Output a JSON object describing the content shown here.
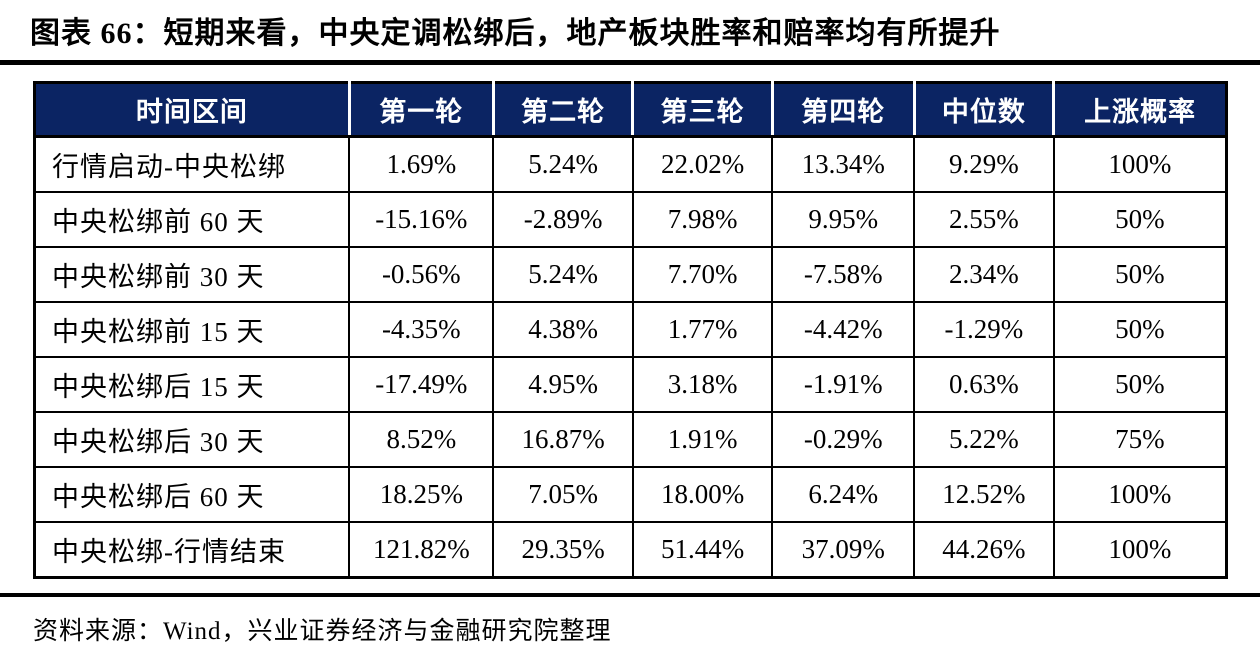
{
  "title": "图表 66：短期来看，中央定调松绑后，地产板块胜率和赔率均有所提升",
  "source_note": "资料来源：Wind，兴业证券经济与金融研究院整理",
  "colors": {
    "header_bg": "#0b2463",
    "header_text": "#ffffff",
    "border": "#000000",
    "text": "#000000",
    "page_bg": "#ffffff"
  },
  "chart_data": {
    "type": "table",
    "title": "短期来看，中央定调松绑后，地产板块胜率和赔率均有所提升",
    "columns": [
      "时间区间",
      "第一轮",
      "第二轮",
      "第三轮",
      "第四轮",
      "中位数",
      "上涨概率"
    ],
    "rows": [
      {
        "cells": [
          "行情启动-中央松绑",
          "1.69%",
          "5.24%",
          "22.02%",
          "13.34%",
          "9.29%",
          "100%"
        ]
      },
      {
        "cells": [
          "中央松绑前 60 天",
          "-15.16%",
          "-2.89%",
          "7.98%",
          "9.95%",
          "2.55%",
          "50%"
        ]
      },
      {
        "cells": [
          "中央松绑前 30 天",
          "-0.56%",
          "5.24%",
          "7.70%",
          "-7.58%",
          "2.34%",
          "50%"
        ]
      },
      {
        "cells": [
          "中央松绑前 15 天",
          "-4.35%",
          "4.38%",
          "1.77%",
          "-4.42%",
          "-1.29%",
          "50%"
        ]
      },
      {
        "cells": [
          "中央松绑后 15 天",
          "-17.49%",
          "4.95%",
          "3.18%",
          "-1.91%",
          "0.63%",
          "50%"
        ]
      },
      {
        "cells": [
          "中央松绑后 30 天",
          "8.52%",
          "16.87%",
          "1.91%",
          "-0.29%",
          "5.22%",
          "75%"
        ]
      },
      {
        "cells": [
          "中央松绑后 60 天",
          "18.25%",
          "7.05%",
          "18.00%",
          "6.24%",
          "12.52%",
          "100%"
        ]
      },
      {
        "cells": [
          "中央松绑-行情结束",
          "121.82%",
          "29.35%",
          "51.44%",
          "37.09%",
          "44.26%",
          "100%"
        ]
      }
    ]
  }
}
